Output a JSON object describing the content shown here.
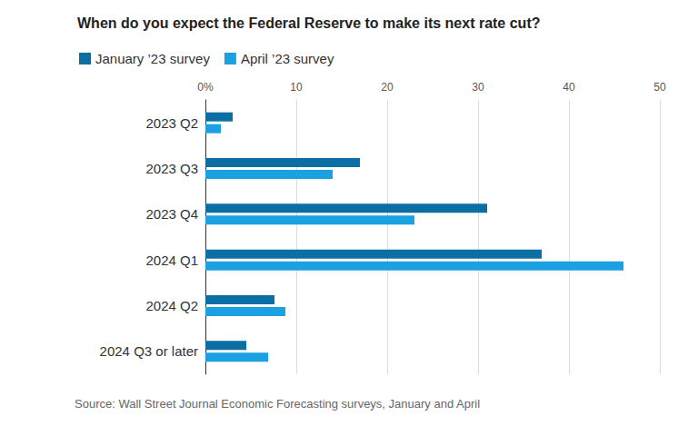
{
  "chart_data": {
    "type": "bar",
    "orientation": "horizontal",
    "title": "When do you expect the Federal Reserve to make its next rate cut?",
    "source": "Source: Wall Street Journal Economic Forecasting surveys, January and April",
    "categories": [
      "2023 Q2",
      "2023 Q3",
      "2023 Q4",
      "2024 Q1",
      "2024 Q2",
      "2024 Q3 or later"
    ],
    "series": [
      {
        "name": "January ’23 survey",
        "color": "#0b6fa4",
        "values": [
          3,
          17,
          31,
          37,
          7.6,
          4.5
        ]
      },
      {
        "name": "April ’23 survey",
        "color": "#1ba1e2",
        "values": [
          1.7,
          14,
          23,
          46,
          8.8,
          6.9
        ]
      }
    ],
    "xlim": [
      0,
      50
    ],
    "xticks": [
      {
        "value": 0,
        "label": "0%"
      },
      10,
      20,
      30,
      40,
      50
    ],
    "grid": true,
    "legend": "top-left"
  }
}
